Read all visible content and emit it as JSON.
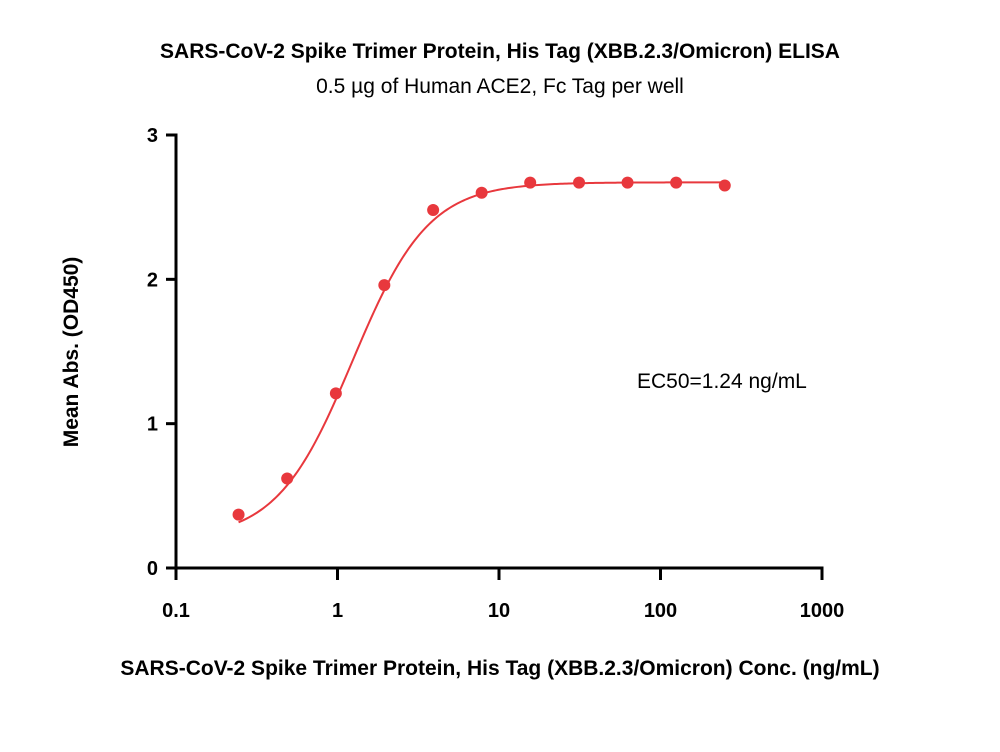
{
  "chart_data": {
    "type": "scatter",
    "title": "SARS-CoV-2 Spike Trimer Protein, His Tag (XBB.2.3/Omicron) ELISA",
    "subtitle": "0.5 µg of Human ACE2, Fc Tag per well",
    "xlabel": "SARS-CoV-2 Spike Trimer Protein, His Tag (XBB.2.3/Omicron) Conc. (ng/mL)",
    "ylabel": "Mean Abs. (OD450)",
    "xscale": "log",
    "xlim": [
      0.1,
      1000
    ],
    "ylim": [
      0,
      3
    ],
    "xticks": [
      0.1,
      1,
      10,
      100,
      1000
    ],
    "xtick_labels": [
      "0.1",
      "1",
      "10",
      "100",
      "1000"
    ],
    "yticks": [
      0,
      1,
      2,
      3
    ],
    "ytick_labels": [
      "0",
      "1",
      "2",
      "3"
    ],
    "grid": false,
    "annotation": "EC50=1.24 ng/mL",
    "series": [
      {
        "x": [
          0.244,
          0.488,
          0.977,
          1.95,
          3.91,
          7.81,
          15.6,
          31.3,
          62.5,
          125,
          250
        ],
        "y": [
          0.37,
          0.62,
          1.21,
          1.96,
          2.48,
          2.6,
          2.67,
          2.67,
          2.67,
          2.67,
          2.65
        ],
        "fit": "4PL",
        "color": "#e8383d"
      }
    ]
  }
}
